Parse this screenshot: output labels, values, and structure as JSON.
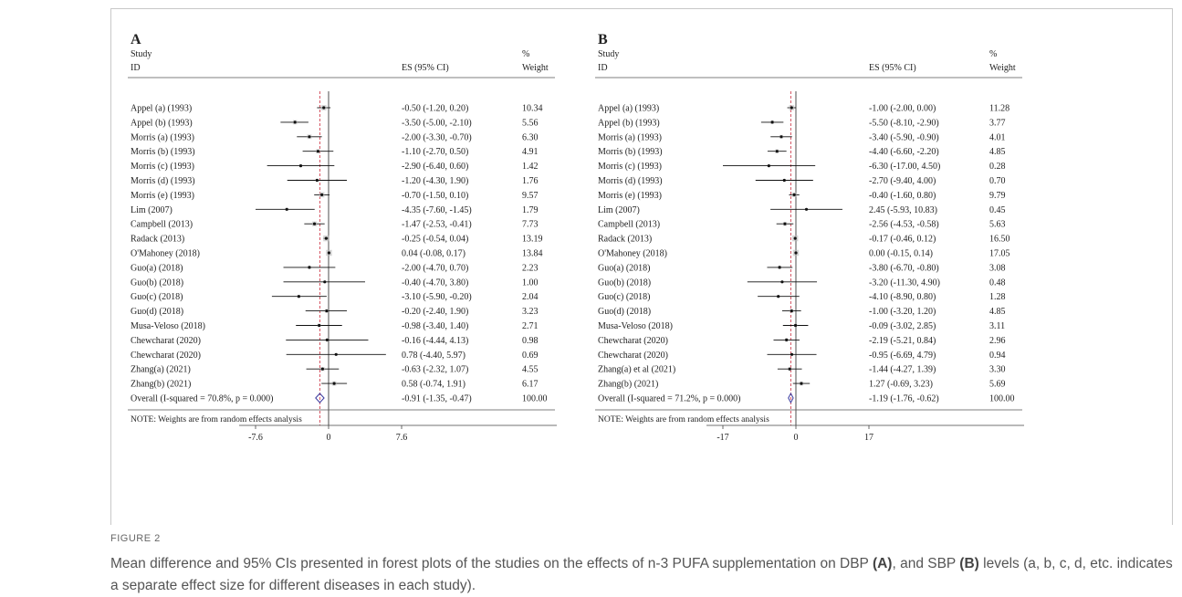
{
  "figure": {
    "label": "FIGURE 2",
    "caption_parts": [
      {
        "text": "Mean difference and 95% CIs presented in forest plots of the studies on the effects of n-3 PUFA supplementation on DBP ",
        "bold": false
      },
      {
        "text": "(A)",
        "bold": true
      },
      {
        "text": ", and SBP ",
        "bold": false
      },
      {
        "text": "(B)",
        "bold": true
      },
      {
        "text": " levels (a, b, c, d, etc. indicates a separate effect size for different diseases in each study).",
        "bold": false
      }
    ]
  },
  "colors": {
    "ci_line": "#111111",
    "ref_line": "#d04050",
    "diamond": "#3a3aa0",
    "text": "#222222"
  },
  "chart_data": [
    {
      "type": "forest",
      "panel_label": "A",
      "headers": {
        "study_1": "Study",
        "study_2": "ID",
        "es": "ES (95% CI)",
        "weight_1": "%",
        "weight_2": "Weight"
      },
      "x_ticks": [
        -7.6,
        0,
        7.6
      ],
      "x_tick_labels": [
        "-7.6",
        "0",
        "7.6"
      ],
      "xlim": [
        -7.6,
        7.6
      ],
      "reference_line": -0.91,
      "studies": [
        {
          "id": "Appel (a) (1993)",
          "es": -0.5,
          "lo": -1.2,
          "hi": 0.2,
          "es_text": "-0.50 (-1.20, 0.20)",
          "weight": "10.34"
        },
        {
          "id": "Appel (b) (1993)",
          "es": -3.5,
          "lo": -5.0,
          "hi": -2.1,
          "es_text": "-3.50 (-5.00, -2.10)",
          "weight": "5.56"
        },
        {
          "id": "Morris (a) (1993)",
          "es": -2.0,
          "lo": -3.3,
          "hi": -0.7,
          "es_text": "-2.00 (-3.30, -0.70)",
          "weight": "6.30"
        },
        {
          "id": "Morris (b) (1993)",
          "es": -1.1,
          "lo": -2.7,
          "hi": 0.5,
          "es_text": "-1.10 (-2.70, 0.50)",
          "weight": "4.91"
        },
        {
          "id": "Morris (c) (1993)",
          "es": -2.9,
          "lo": -6.4,
          "hi": 0.6,
          "es_text": "-2.90 (-6.40, 0.60)",
          "weight": "1.42"
        },
        {
          "id": "Morris (d) (1993)",
          "es": -1.2,
          "lo": -4.3,
          "hi": 1.9,
          "es_text": "-1.20 (-4.30, 1.90)",
          "weight": "1.76"
        },
        {
          "id": "Morris (e) (1993)",
          "es": -0.7,
          "lo": -1.5,
          "hi": 0.1,
          "es_text": "-0.70 (-1.50, 0.10)",
          "weight": "9.57"
        },
        {
          "id": "Lim (2007)",
          "es": -4.35,
          "lo": -7.6,
          "hi": -1.45,
          "es_text": "-4.35 (-7.60, -1.45)",
          "weight": "1.79"
        },
        {
          "id": "Campbell (2013)",
          "es": -1.47,
          "lo": -2.53,
          "hi": -0.41,
          "es_text": "-1.47 (-2.53, -0.41)",
          "weight": "7.73"
        },
        {
          "id": "Radack (2013)",
          "es": -0.25,
          "lo": -0.54,
          "hi": 0.04,
          "es_text": "-0.25 (-0.54, 0.04)",
          "weight": "13.19"
        },
        {
          "id": "O'Mahoney (2018)",
          "es": 0.04,
          "lo": -0.08,
          "hi": 0.17,
          "es_text": "0.04 (-0.08, 0.17)",
          "weight": "13.84"
        },
        {
          "id": "Guo(a) (2018)",
          "es": -2.0,
          "lo": -4.7,
          "hi": 0.7,
          "es_text": "-2.00 (-4.70, 0.70)",
          "weight": "2.23"
        },
        {
          "id": "Guo(b) (2018)",
          "es": -0.4,
          "lo": -4.7,
          "hi": 3.8,
          "es_text": "-0.40 (-4.70, 3.80)",
          "weight": "1.00"
        },
        {
          "id": "Guo(c) (2018)",
          "es": -3.1,
          "lo": -5.9,
          "hi": -0.2,
          "es_text": "-3.10 (-5.90, -0.20)",
          "weight": "2.04"
        },
        {
          "id": "Guo(d) (2018)",
          "es": -0.2,
          "lo": -2.4,
          "hi": 1.9,
          "es_text": "-0.20 (-2.40, 1.90)",
          "weight": "3.23"
        },
        {
          "id": "Musa-Veloso (2018)",
          "es": -0.98,
          "lo": -3.4,
          "hi": 1.4,
          "es_text": "-0.98 (-3.40, 1.40)",
          "weight": "2.71"
        },
        {
          "id": "Chewcharat (2020)",
          "es": -0.16,
          "lo": -4.44,
          "hi": 4.13,
          "es_text": "-0.16 (-4.44, 4.13)",
          "weight": "0.98"
        },
        {
          "id": "Chewcharat (2020)",
          "es": 0.78,
          "lo": -4.4,
          "hi": 5.97,
          "es_text": "0.78 (-4.40, 5.97)",
          "weight": "0.69"
        },
        {
          "id": "Zhang(a) (2021)",
          "es": -0.63,
          "lo": -2.32,
          "hi": 1.07,
          "es_text": "-0.63 (-2.32, 1.07)",
          "weight": "4.55"
        },
        {
          "id": "Zhang(b) (2021)",
          "es": 0.58,
          "lo": -0.74,
          "hi": 1.91,
          "es_text": "0.58 (-0.74, 1.91)",
          "weight": "6.17"
        }
      ],
      "overall": {
        "label": "Overall  (I-squared = 70.8%, p = 0.000)",
        "es": -0.91,
        "lo": -1.35,
        "hi": -0.47,
        "es_text": "-0.91 (-1.35, -0.47)",
        "weight": "100.00"
      },
      "note": "NOTE: Weights are from random effects analysis"
    },
    {
      "type": "forest",
      "panel_label": "B",
      "headers": {
        "study_1": "Study",
        "study_2": "ID",
        "es": "ES (95% CI)",
        "weight_1": "%",
        "weight_2": "Weight"
      },
      "x_ticks": [
        -17,
        0,
        17
      ],
      "x_tick_labels": [
        "-17",
        "0",
        "17"
      ],
      "xlim": [
        -17,
        17
      ],
      "reference_line": -1.19,
      "studies": [
        {
          "id": "Appel (a) (1993)",
          "es": -1.0,
          "lo": -2.0,
          "hi": 0.0,
          "es_text": "-1.00 (-2.00, 0.00)",
          "weight": "11.28"
        },
        {
          "id": "Appel (b) (1993)",
          "es": -5.5,
          "lo": -8.1,
          "hi": -2.9,
          "es_text": "-5.50 (-8.10, -2.90)",
          "weight": "3.77"
        },
        {
          "id": "Morris (a) (1993)",
          "es": -3.4,
          "lo": -5.9,
          "hi": -0.9,
          "es_text": "-3.40 (-5.90, -0.90)",
          "weight": "4.01"
        },
        {
          "id": "Morris (b) (1993)",
          "es": -4.4,
          "lo": -6.6,
          "hi": -2.2,
          "es_text": "-4.40 (-6.60, -2.20)",
          "weight": "4.85"
        },
        {
          "id": "Morris (c) (1993)",
          "es": -6.3,
          "lo": -17.0,
          "hi": 4.5,
          "es_text": "-6.30 (-17.00, 4.50)",
          "weight": "0.28"
        },
        {
          "id": "Morris (d) (1993)",
          "es": -2.7,
          "lo": -9.4,
          "hi": 4.0,
          "es_text": "-2.70 (-9.40, 4.00)",
          "weight": "0.70"
        },
        {
          "id": "Morris (e) (1993)",
          "es": -0.4,
          "lo": -1.6,
          "hi": 0.8,
          "es_text": "-0.40 (-1.60, 0.80)",
          "weight": "9.79"
        },
        {
          "id": "Lim (2007)",
          "es": 2.45,
          "lo": -5.93,
          "hi": 10.83,
          "es_text": "2.45 (-5.93, 10.83)",
          "weight": "0.45"
        },
        {
          "id": "Campbell (2013)",
          "es": -2.56,
          "lo": -4.53,
          "hi": -0.58,
          "es_text": "-2.56 (-4.53, -0.58)",
          "weight": "5.63"
        },
        {
          "id": "Radack (2013)",
          "es": -0.17,
          "lo": -0.46,
          "hi": 0.12,
          "es_text": "-0.17 (-0.46, 0.12)",
          "weight": "16.50"
        },
        {
          "id": "O'Mahoney (2018)",
          "es": 0.0,
          "lo": -0.15,
          "hi": 0.14,
          "es_text": "0.00 (-0.15, 0.14)",
          "weight": "17.05"
        },
        {
          "id": "Guo(a) (2018)",
          "es": -3.8,
          "lo": -6.7,
          "hi": -0.8,
          "es_text": "-3.80 (-6.70, -0.80)",
          "weight": "3.08"
        },
        {
          "id": "Guo(b) (2018)",
          "es": -3.2,
          "lo": -11.3,
          "hi": 4.9,
          "es_text": "-3.20 (-11.30, 4.90)",
          "weight": "0.48"
        },
        {
          "id": "Guo(c) (2018)",
          "es": -4.1,
          "lo": -8.9,
          "hi": 0.8,
          "es_text": "-4.10 (-8.90, 0.80)",
          "weight": "1.28"
        },
        {
          "id": "Guo(d) (2018)",
          "es": -1.0,
          "lo": -3.2,
          "hi": 1.2,
          "es_text": "-1.00 (-3.20, 1.20)",
          "weight": "4.85"
        },
        {
          "id": "Musa-Veloso (2018)",
          "es": -0.09,
          "lo": -3.02,
          "hi": 2.85,
          "es_text": "-0.09 (-3.02, 2.85)",
          "weight": "3.11"
        },
        {
          "id": "Chewcharat (2020)",
          "es": -2.19,
          "lo": -5.21,
          "hi": 0.84,
          "es_text": "-2.19 (-5.21, 0.84)",
          "weight": "2.96"
        },
        {
          "id": "Chewcharat (2020)",
          "es": -0.95,
          "lo": -6.69,
          "hi": 4.79,
          "es_text": "-0.95 (-6.69, 4.79)",
          "weight": "0.94"
        },
        {
          "id": "Zhang(a) et al (2021)",
          "es": -1.44,
          "lo": -4.27,
          "hi": 1.39,
          "es_text": "-1.44 (-4.27, 1.39)",
          "weight": "3.30"
        },
        {
          "id": "Zhang(b) (2021)",
          "es": 1.27,
          "lo": -0.69,
          "hi": 3.23,
          "es_text": "1.27 (-0.69, 3.23)",
          "weight": "5.69"
        }
      ],
      "overall": {
        "label": "Overall  (I-squared = 71.2%, p = 0.000)",
        "es": -1.19,
        "lo": -1.76,
        "hi": -0.62,
        "es_text": "-1.19 (-1.76, -0.62)",
        "weight": "100.00"
      },
      "note": "NOTE: Weights are from random effects analysis"
    }
  ]
}
